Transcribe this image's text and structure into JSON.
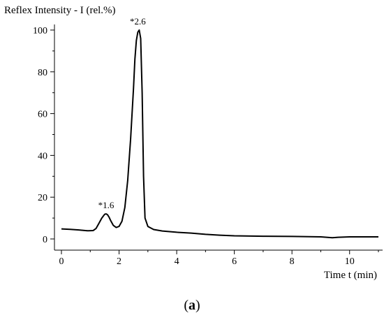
{
  "caption": {
    "open": "(",
    "letter": "a",
    "close": ")"
  },
  "chart_data": {
    "type": "line",
    "title": "",
    "ylabel": "Reflex Intensity - I (rel.%)",
    "xlabel": "Time t (min)",
    "xlim": [
      0,
      11
    ],
    "ylim": [
      0,
      100
    ],
    "x_major_ticks": [
      0,
      2,
      4,
      6,
      8,
      10
    ],
    "x_minor_ticks": [
      1,
      3,
      5,
      7,
      9,
      11
    ],
    "y_major_ticks": [
      0,
      20,
      40,
      60,
      80,
      100
    ],
    "y_minor_ticks": [
      10,
      30,
      50,
      70,
      90
    ],
    "grid": false,
    "legend": "none",
    "series": [
      {
        "color": "#000000",
        "x": [
          0,
          0.3,
          0.6,
          0.9,
          1.1,
          1.2,
          1.3,
          1.4,
          1.5,
          1.55,
          1.6,
          1.65,
          1.7,
          1.8,
          1.9,
          2.0,
          2.1,
          2.2,
          2.3,
          2.4,
          2.5,
          2.55,
          2.6,
          2.65,
          2.7,
          2.75,
          2.8,
          2.85,
          2.9,
          3.0,
          3.2,
          3.5,
          4.0,
          4.5,
          5.0,
          5.5,
          6.0,
          7.0,
          8.0,
          9.0,
          9.4,
          9.6,
          10.0,
          10.5,
          11.0
        ],
        "y": [
          4.8,
          4.6,
          4.3,
          3.9,
          4.0,
          5.0,
          7.5,
          10.0,
          11.8,
          12.0,
          11.6,
          10.5,
          9.0,
          6.5,
          5.5,
          6.0,
          8.5,
          15.0,
          28.0,
          48.0,
          72.0,
          86.0,
          95.0,
          99.0,
          100.0,
          96.0,
          70.0,
          30.0,
          10.0,
          6.0,
          4.5,
          3.8,
          3.2,
          2.8,
          2.2,
          1.8,
          1.5,
          1.3,
          1.2,
          1.0,
          0.6,
          0.8,
          1.0,
          1.0,
          1.0
        ]
      }
    ],
    "annotations": [
      {
        "x": 1.55,
        "y": 12.0,
        "text": "*1.6"
      },
      {
        "x": 2.65,
        "y": 100.0,
        "text": "*2.6"
      }
    ]
  }
}
